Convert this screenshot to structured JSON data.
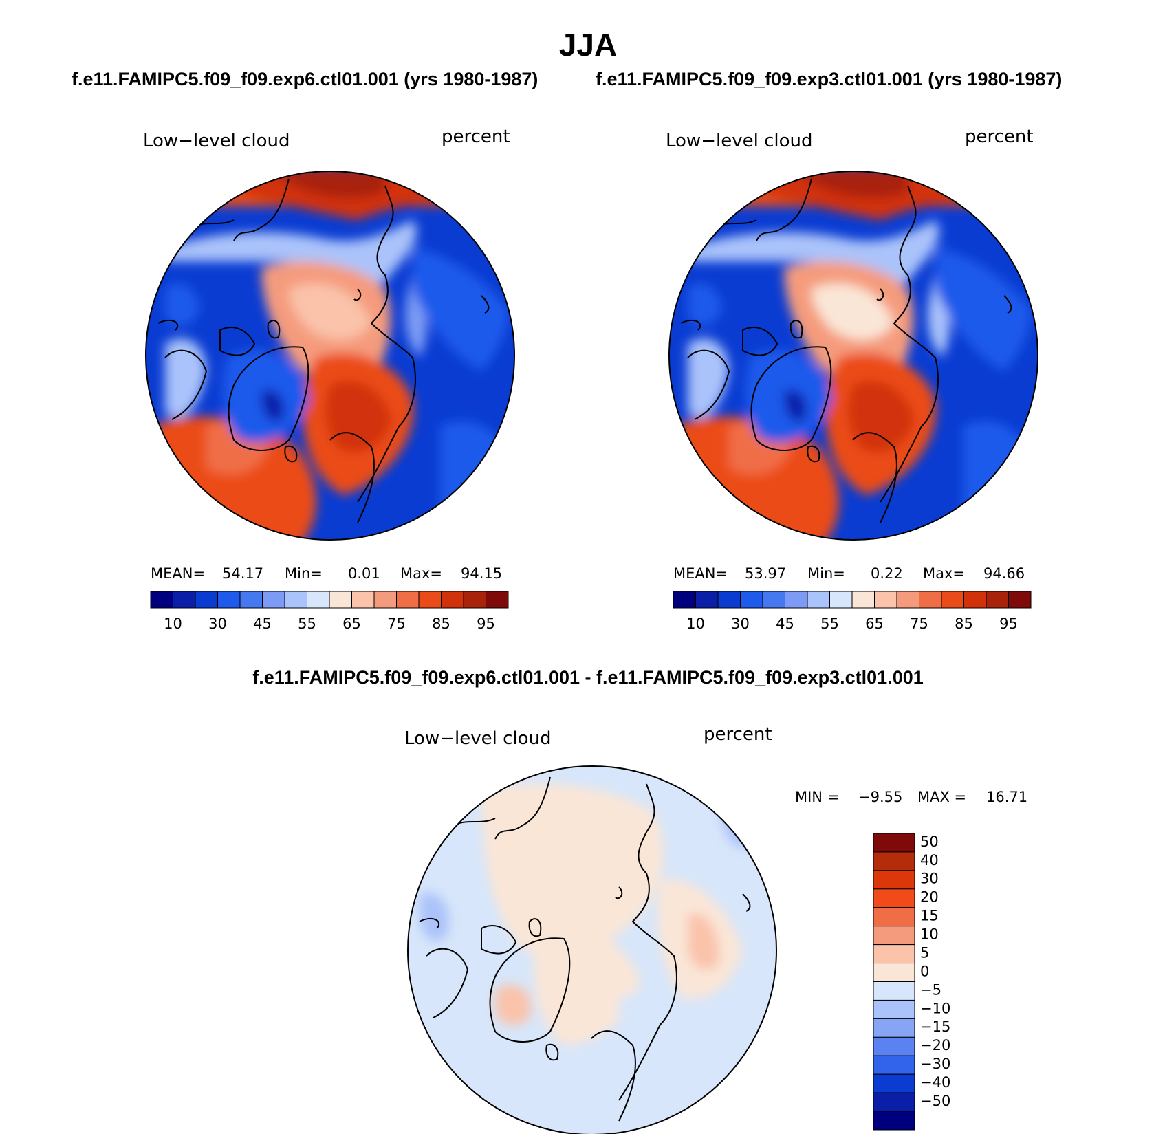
{
  "figure": {
    "title": "JJA",
    "case_a_title": "f.e11.FAMIPC5.f09_f09.exp6.ctl01.001 (yrs 1980-1987)",
    "case_b_title": "f.e11.FAMIPC5.f09_f09.exp3.ctl01.001 (yrs 1980-1987)",
    "diff_title": "f.e11.FAMIPC5.f09_f09.exp6.ctl01.001 - f.e11.FAMIPC5.f09_f09.exp3.ctl01.001"
  },
  "panels": [
    {
      "id": "case-a",
      "variable": "Low−level cloud",
      "units": "percent",
      "mean_label": "MEAN=",
      "mean": "54.17",
      "min_label": "Min=",
      "min": "0.01",
      "max_label": "Max=",
      "max": "94.15"
    },
    {
      "id": "case-b",
      "variable": "Low−level cloud",
      "units": "percent",
      "mean_label": "MEAN=",
      "mean": "53.97",
      "min_label": "Min=",
      "min": "0.22",
      "max_label": "Max=",
      "max": "94.66"
    },
    {
      "id": "difference",
      "variable": "Low−level cloud",
      "units": "percent",
      "min_label": "MIN =",
      "min": "−9.55",
      "max_label": "MAX =",
      "max": "16.71"
    }
  ],
  "colorbars": {
    "field": {
      "colors": [
        "#00007f",
        "#0a1ea8",
        "#0a3cd2",
        "#1e5aeb",
        "#4678f0",
        "#7d9bf5",
        "#aac3fa",
        "#d7e6fa",
        "#fae6d7",
        "#fac3aa",
        "#f59b7d",
        "#f06e46",
        "#eb4b19",
        "#d2320a",
        "#a8230a",
        "#7f0a0a"
      ],
      "tick_labels": [
        "10",
        "30",
        "45",
        "55",
        "65",
        "75",
        "85",
        "95"
      ]
    },
    "difference": {
      "colors": [
        "#7f0a0a",
        "#b42d0a",
        "#dc370a",
        "#f04b19",
        "#f06e46",
        "#f59b7d",
        "#fac3aa",
        "#fae6d7",
        "#d7e6fa",
        "#aac3fa",
        "#87a5f5",
        "#5a82f0",
        "#3264eb",
        "#0a3cd2",
        "#0a1ea8",
        "#00007f"
      ],
      "tick_labels": [
        "50",
        "40",
        "30",
        "20",
        "15",
        "10",
        "5",
        "0",
        "−5",
        "−10",
        "−15",
        "−20",
        "−30",
        "−40",
        "−50"
      ]
    }
  }
}
